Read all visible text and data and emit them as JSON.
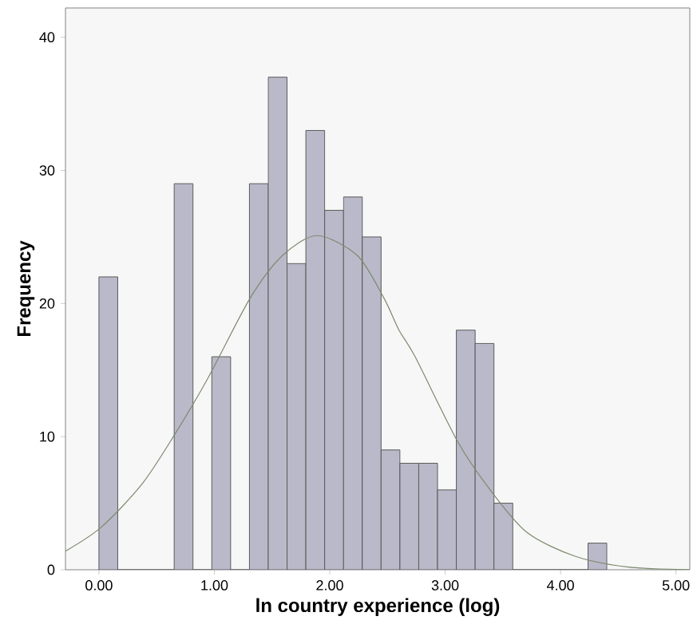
{
  "chart_data": {
    "type": "histogram",
    "xlabel": "ln country experience (log)",
    "ylabel": "Frequency",
    "bins": [
      0,
      0.163,
      0.326,
      0.489,
      0.652,
      0.815,
      0.978,
      1.141,
      1.304,
      1.467,
      1.63,
      1.793,
      1.956,
      2.119,
      2.282,
      2.445,
      2.608,
      2.771,
      2.934,
      3.097,
      3.26,
      3.423,
      3.586,
      3.749,
      3.912,
      4.075,
      4.238,
      4.401
    ],
    "values": [
      22,
      0,
      0,
      0,
      29,
      0,
      16,
      0,
      29,
      37,
      23,
      33,
      27,
      28,
      25,
      9,
      8,
      8,
      6,
      18,
      17,
      5,
      0,
      0,
      0,
      0,
      2
    ],
    "color": "#b9b9c9",
    "series": [
      {
        "type": "line",
        "color": "#7d8a6e",
        "x": [
          -0.29,
          0.02,
          0.37,
          0.645,
          0.945,
          1.31,
          1.59,
          1.89,
          2.24,
          2.47,
          2.6,
          2.74,
          3.11,
          3.39,
          3.71,
          4.13,
          4.59,
          5.12
        ],
        "values": [
          1.4,
          3.2,
          6.4,
          10,
          14.4,
          20.4,
          23.6,
          25.1,
          23.6,
          20.4,
          18,
          16,
          9.6,
          6,
          2.8,
          1.0,
          0.2,
          0
        ]
      }
    ],
    "xlim": [
      -0.29,
      5.12
    ],
    "ylim": [
      0,
      42.2
    ],
    "xticks": [
      {
        "value": 0,
        "label": "0.00"
      },
      {
        "value": 1,
        "label": "1.00"
      },
      {
        "value": 2,
        "label": "2.00"
      },
      {
        "value": 3,
        "label": "3.00"
      },
      {
        "value": 4,
        "label": "4.00"
      },
      {
        "value": 5,
        "label": "5.00"
      }
    ],
    "yticks": [
      0,
      10,
      20,
      30,
      40
    ]
  }
}
